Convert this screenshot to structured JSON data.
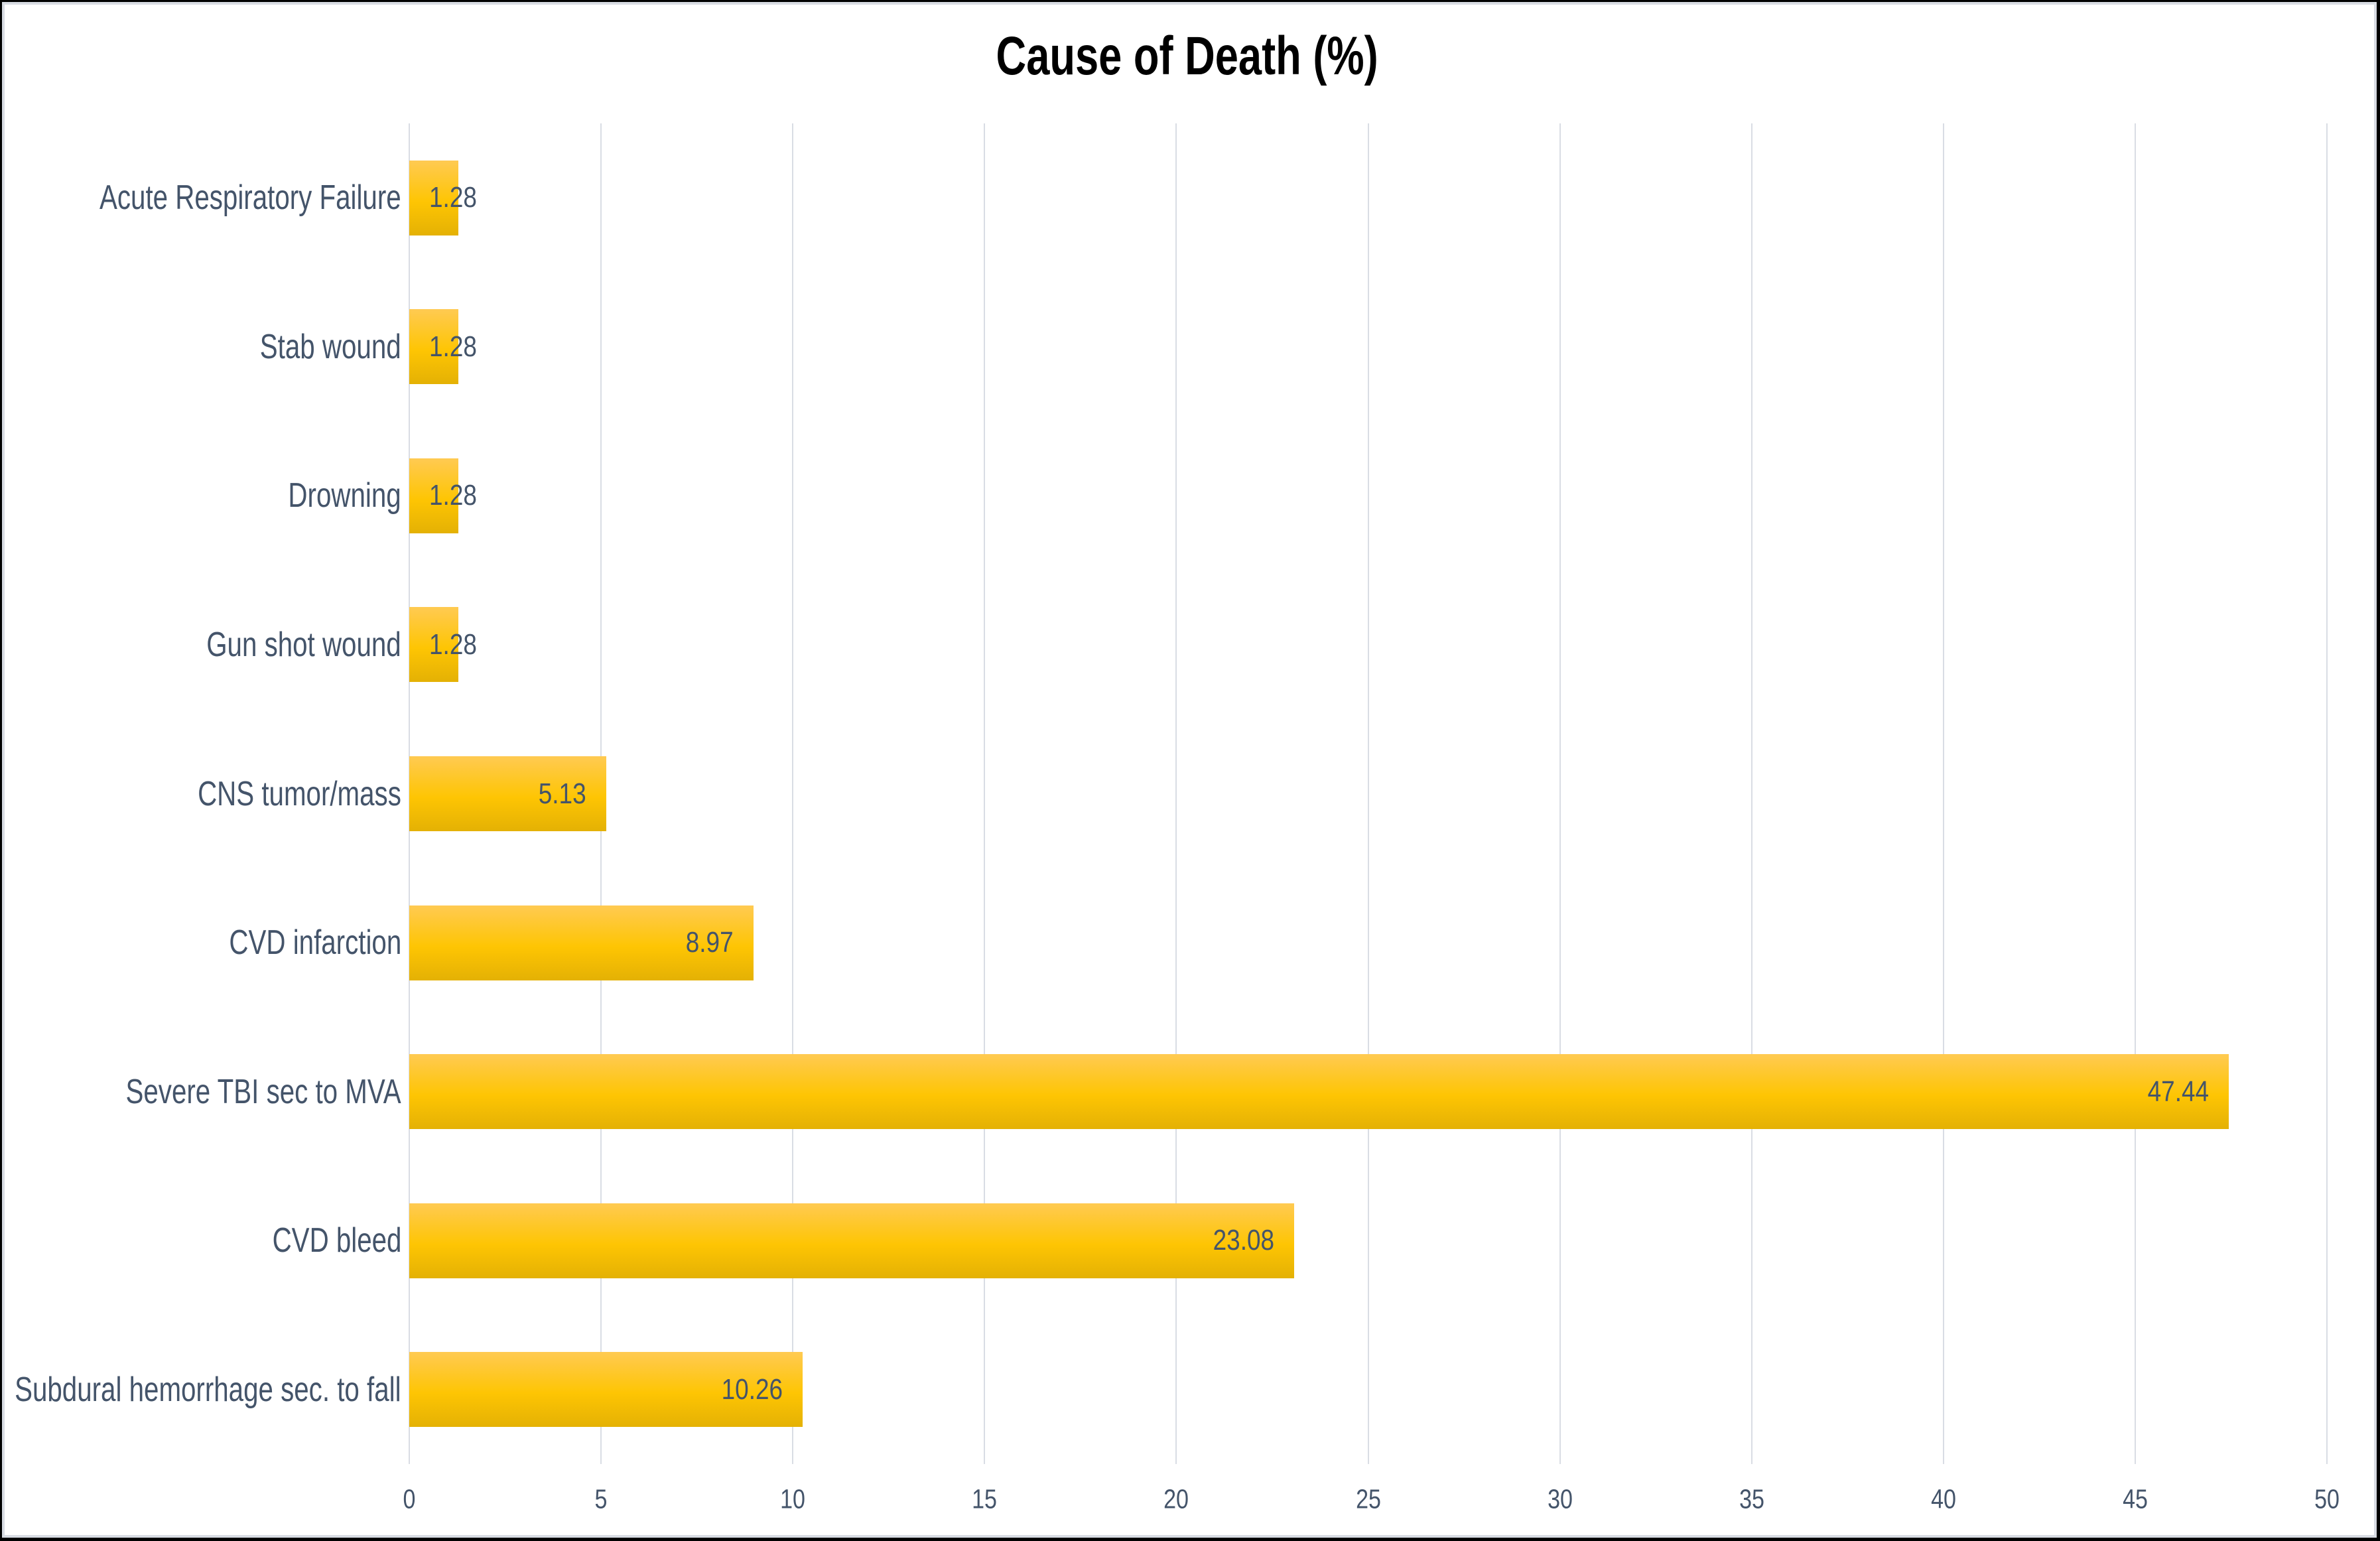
{
  "chart_data": {
    "type": "bar",
    "orientation": "horizontal",
    "title": "Cause of Death (%)",
    "categories": [
      "Acute Respiratory Failure",
      "Stab wound",
      "Drowning",
      "Gun shot wound",
      "CNS tumor/mass",
      "CVD infarction",
      "Severe TBI sec to MVA",
      "CVD bleed",
      "Subdural hemorrhage sec. to fall"
    ],
    "values": [
      1.28,
      1.28,
      1.28,
      1.28,
      5.13,
      8.97,
      47.44,
      23.08,
      10.26
    ],
    "value_labels": [
      "1.28",
      "1.28",
      "1.28",
      "1.28",
      "5.13",
      "8.97",
      "47.44",
      "23.08",
      "10.26"
    ],
    "xlabel": "",
    "ylabel": "",
    "xlim": [
      0,
      50
    ],
    "xticks": [
      0,
      5,
      10,
      15,
      20,
      25,
      30,
      35,
      40,
      45,
      50
    ],
    "grid": "vertical-major",
    "legend": "none",
    "colors": {
      "bar_gradient_top": "#FFCA52",
      "bar_gradient_mid": "#FEC503",
      "bar_gradient_bottom": "#E4B104",
      "text": "#44546A",
      "title_text": "#000000",
      "gridline": "#D9DDE4",
      "background": "#FFFFFF",
      "frame_outer": "#000000",
      "frame_inner": "#D8DCE3"
    }
  }
}
